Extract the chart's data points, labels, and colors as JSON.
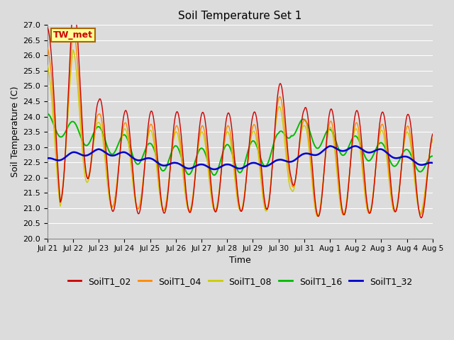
{
  "title": "Soil Temperature Set 1",
  "xlabel": "Time",
  "ylabel": "Soil Temperature (C)",
  "ylim": [
    20.0,
    27.0
  ],
  "yticks": [
    20.0,
    20.5,
    21.0,
    21.5,
    22.0,
    22.5,
    23.0,
    23.5,
    24.0,
    24.5,
    25.0,
    25.5,
    26.0,
    26.5,
    27.0
  ],
  "bg_color": "#dcdcdc",
  "plot_bg_color": "#dcdcdc",
  "grid_color": "white",
  "series_colors": {
    "SoilT1_02": "#cc0000",
    "SoilT1_04": "#ff8800",
    "SoilT1_08": "#cccc00",
    "SoilT1_16": "#00bb00",
    "SoilT1_32": "#0000cc"
  },
  "legend_label": "TW_met",
  "annotation_bg": "#ffff99",
  "annotation_border": "#aa6600",
  "num_days": 15,
  "num_points": 1440
}
